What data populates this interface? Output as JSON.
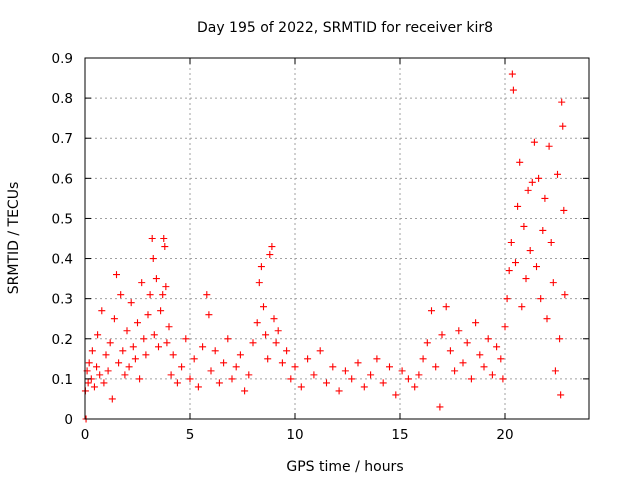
{
  "chart_data": {
    "type": "scatter",
    "title": "Day 195 of 2022, SRMTID for receiver kir8",
    "xlabel": "GPS time / hours",
    "ylabel": "SRMTID / TECUs",
    "xlim": [
      0,
      24
    ],
    "ylim": [
      0,
      0.9
    ],
    "xticks": [
      0,
      5,
      10,
      15,
      20
    ],
    "xtick_labels": [
      "0",
      "5",
      "10",
      "15",
      "20"
    ],
    "yticks": [
      0,
      0.1,
      0.2,
      0.3,
      0.4,
      0.5,
      0.6,
      0.7,
      0.8,
      0.9
    ],
    "ytick_labels": [
      "0",
      "0.1",
      "0.2",
      "0.3",
      "0.4",
      "0.5",
      "0.6",
      "0.7",
      "0.8",
      "0.9"
    ],
    "grid": true,
    "marker": "+",
    "series": [
      {
        "name": "SRMTID",
        "color": "#ff0000",
        "x": [
          0.02,
          0.05,
          0.1,
          0.15,
          0.2,
          0.3,
          0.35,
          0.45,
          0.55,
          0.6,
          0.7,
          0.8,
          0.9,
          1.0,
          1.1,
          1.2,
          1.3,
          1.4,
          1.5,
          1.6,
          1.7,
          1.8,
          1.9,
          2.0,
          2.1,
          2.2,
          2.3,
          2.4,
          2.5,
          2.6,
          2.7,
          2.8,
          2.9,
          3.0,
          3.1,
          3.2,
          3.25,
          3.3,
          3.4,
          3.5,
          3.6,
          3.7,
          3.75,
          3.8,
          3.85,
          3.9,
          4.0,
          4.1,
          4.2,
          4.4,
          4.6,
          4.8,
          5.0,
          5.2,
          5.4,
          5.6,
          5.8,
          5.9,
          6.0,
          6.2,
          6.4,
          6.6,
          6.8,
          7.0,
          7.2,
          7.4,
          7.6,
          7.8,
          8.0,
          8.2,
          8.3,
          8.4,
          8.5,
          8.6,
          8.7,
          8.8,
          8.9,
          9.0,
          9.1,
          9.2,
          9.4,
          9.6,
          9.8,
          10.0,
          10.3,
          10.6,
          10.9,
          11.2,
          11.5,
          11.8,
          12.1,
          12.4,
          12.7,
          13.0,
          13.3,
          13.6,
          13.9,
          14.2,
          14.5,
          14.8,
          15.1,
          15.4,
          15.7,
          15.9,
          16.1,
          16.3,
          16.5,
          16.7,
          16.9,
          17.0,
          17.2,
          17.4,
          17.6,
          17.8,
          18.0,
          18.2,
          18.4,
          18.6,
          18.8,
          19.0,
          19.2,
          19.4,
          19.6,
          19.8,
          19.9,
          20.0,
          20.1,
          20.2,
          20.3,
          20.35,
          20.4,
          20.5,
          20.6,
          20.7,
          20.8,
          20.9,
          21.0,
          21.1,
          21.2,
          21.3,
          21.4,
          21.5,
          21.6,
          21.7,
          21.8,
          21.9,
          22.0,
          22.1,
          22.2,
          22.3,
          22.4,
          22.5,
          22.6,
          22.65,
          22.7,
          22.75,
          22.8,
          22.85
        ],
        "y": [
          0.07,
          0.0,
          0.12,
          0.09,
          0.14,
          0.1,
          0.17,
          0.08,
          0.13,
          0.21,
          0.11,
          0.27,
          0.09,
          0.16,
          0.12,
          0.19,
          0.05,
          0.25,
          0.36,
          0.14,
          0.31,
          0.17,
          0.11,
          0.22,
          0.13,
          0.29,
          0.18,
          0.15,
          0.24,
          0.1,
          0.34,
          0.2,
          0.16,
          0.26,
          0.31,
          0.45,
          0.4,
          0.21,
          0.35,
          0.18,
          0.27,
          0.31,
          0.45,
          0.43,
          0.33,
          0.19,
          0.23,
          0.11,
          0.16,
          0.09,
          0.13,
          0.2,
          0.1,
          0.15,
          0.08,
          0.18,
          0.31,
          0.26,
          0.12,
          0.17,
          0.09,
          0.14,
          0.2,
          0.1,
          0.13,
          0.16,
          0.07,
          0.11,
          0.19,
          0.24,
          0.34,
          0.38,
          0.28,
          0.21,
          0.15,
          0.41,
          0.43,
          0.25,
          0.19,
          0.22,
          0.14,
          0.17,
          0.1,
          0.13,
          0.08,
          0.15,
          0.11,
          0.17,
          0.09,
          0.13,
          0.07,
          0.12,
          0.1,
          0.14,
          0.08,
          0.11,
          0.15,
          0.09,
          0.13,
          0.06,
          0.12,
          0.1,
          0.08,
          0.11,
          0.15,
          0.19,
          0.27,
          0.13,
          0.03,
          0.21,
          0.28,
          0.17,
          0.12,
          0.22,
          0.14,
          0.19,
          0.1,
          0.24,
          0.16,
          0.13,
          0.2,
          0.11,
          0.18,
          0.15,
          0.1,
          0.23,
          0.3,
          0.37,
          0.44,
          0.86,
          0.82,
          0.39,
          0.53,
          0.64,
          0.28,
          0.48,
          0.35,
          0.57,
          0.42,
          0.59,
          0.69,
          0.38,
          0.6,
          0.3,
          0.47,
          0.55,
          0.25,
          0.68,
          0.44,
          0.34,
          0.12,
          0.61,
          0.2,
          0.06,
          0.79,
          0.73,
          0.52,
          0.31
        ]
      }
    ]
  }
}
